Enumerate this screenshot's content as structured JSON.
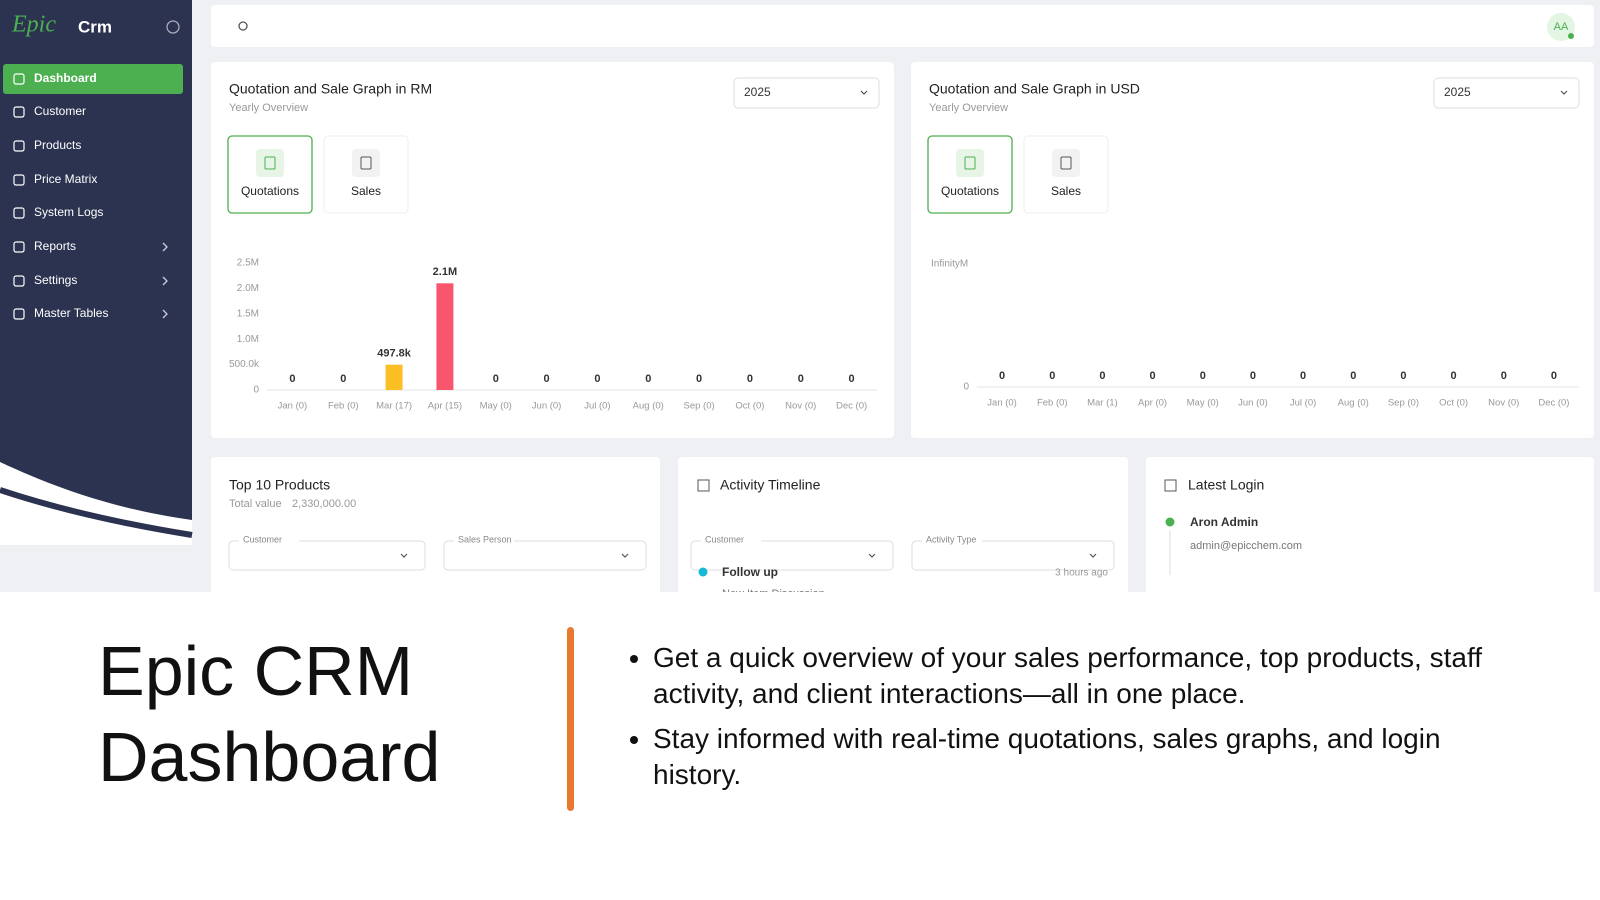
{
  "sidebar": {
    "brand": "Epic",
    "product": "Crm",
    "menu": [
      "Dashboard",
      "Customer",
      "Products",
      "Price Matrix",
      "System Logs",
      "Reports",
      "Settings",
      "Master Tables"
    ]
  },
  "header": {
    "avatar": "AA"
  },
  "rm_panel": {
    "title": "Quotation and Sale Graph in RM",
    "subtitle": "Yearly Overview",
    "year": "2025",
    "tabs": [
      "Quotations",
      "Sales"
    ],
    "chart_data": {
      "type": "bar",
      "categories": [
        "Jan (0)",
        "Feb (0)",
        "Mar (17)",
        "Apr (15)",
        "May (0)",
        "Jun (0)",
        "Jul (0)",
        "Aug (0)",
        "Sep (0)",
        "Oct (0)",
        "Nov (0)",
        "Dec (0)"
      ],
      "values": [
        0,
        0,
        497800,
        2100000,
        0,
        0,
        0,
        0,
        0,
        0,
        0,
        0
      ],
      "value_labels": [
        "0",
        "0",
        "497.8k",
        "2.1M",
        "0",
        "0",
        "0",
        "0",
        "0",
        "0",
        "0",
        "0"
      ],
      "colors": [
        "#4caf50",
        "#60a5fa",
        "#fbbf24",
        "#f7566d",
        "#4caf50",
        "#60a5fa",
        "#fbbf24",
        "#f7566d",
        "#4caf50",
        "#60a5fa",
        "#fbbf24",
        "#f7566d"
      ],
      "ylim": [
        0,
        2500000
      ],
      "yticks": [
        0,
        {
          "value": 500000,
          "label": "500.0k"
        },
        {
          "value": 1000000,
          "label": "1.0M"
        },
        {
          "value": 1500000,
          "label": "1.5M"
        },
        {
          "value": 2000000,
          "label": "2.0M"
        },
        {
          "value": 2500000,
          "label": "2.5M"
        }
      ]
    }
  },
  "usd_panel": {
    "title": "Quotation and Sale Graph in USD",
    "subtitle": "Yearly Overview",
    "year": "2025",
    "tabs": [
      "Quotations",
      "Sales"
    ],
    "chart_data": {
      "type": "bar",
      "categories": [
        "Jan (0)",
        "Feb (0)",
        "Mar (1)",
        "Apr (0)",
        "May (0)",
        "Jun (0)",
        "Jul (0)",
        "Aug (0)",
        "Sep (0)",
        "Oct (0)",
        "Nov (0)",
        "Dec (0)"
      ],
      "values": [
        0,
        0,
        0,
        0,
        0,
        0,
        0,
        0,
        0,
        0,
        0,
        0
      ],
      "y_top_label": "InfinityM",
      "yticks": [
        0
      ]
    }
  },
  "top_products": {
    "title": "Top 10 Products",
    "total_label": "Total value",
    "total": "2,330,000.00",
    "filters": [
      "Customer",
      "Sales Person"
    ]
  },
  "activity": {
    "title": "Activity Timeline",
    "filters": [
      "Customer",
      "Activity Type"
    ],
    "items": [
      {
        "title": "Follow up",
        "time": "3 hours ago",
        "detail": "New Item Discussion"
      }
    ]
  },
  "latest_login": {
    "title": "Latest Login",
    "users": [
      {
        "name": "Aron Admin",
        "email": "admin@epicchem.com"
      }
    ]
  },
  "slide": {
    "title": "Epic CRM Dashboard",
    "bullets": [
      "Get a quick overview of your sales performance, top products, staff activity, and client interactions—all in one place.",
      "Stay informed with real-time quotations, sales graphs, and login history."
    ]
  }
}
